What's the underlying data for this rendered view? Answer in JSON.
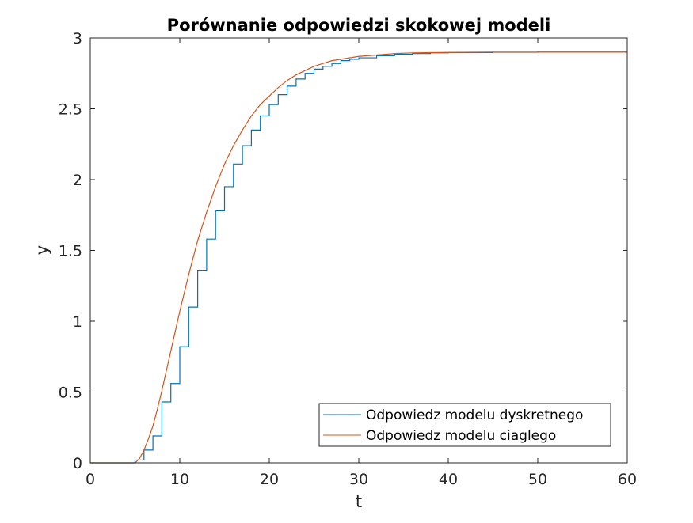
{
  "chart_data": {
    "type": "line",
    "title": "Porównanie odpowiedzi skokowej modeli",
    "xlabel": "t",
    "ylabel": "y",
    "xlim": [
      0,
      60
    ],
    "ylim": [
      0,
      3
    ],
    "xticks": [
      "0",
      "10",
      "20",
      "30",
      "40",
      "50",
      "60"
    ],
    "yticks": [
      "0",
      "0.5",
      "1",
      "1.5",
      "2",
      "2.5",
      "3"
    ],
    "grid": false,
    "legend_position": "bottom-right",
    "series": [
      {
        "name": "Odpowiedz modelu dyskretnego",
        "style": "stairs",
        "color": "#0072BD",
        "x": [
          0,
          1,
          2,
          3,
          4,
          5,
          6,
          7,
          8,
          9,
          10,
          11,
          12,
          13,
          14,
          15,
          16,
          17,
          18,
          19,
          20,
          21,
          22,
          23,
          24,
          25,
          26,
          27,
          28,
          29,
          30,
          32,
          34,
          36,
          38,
          40,
          45,
          50,
          55,
          60
        ],
        "y": [
          0,
          0,
          0,
          0,
          0,
          0.02,
          0.09,
          0.19,
          0.43,
          0.56,
          0.82,
          1.1,
          1.36,
          1.58,
          1.78,
          1.95,
          2.11,
          2.24,
          2.35,
          2.45,
          2.53,
          2.6,
          2.66,
          2.71,
          2.75,
          2.78,
          2.8,
          2.82,
          2.84,
          2.85,
          2.86,
          2.875,
          2.885,
          2.89,
          2.895,
          2.897,
          2.899,
          2.9,
          2.9,
          2.9
        ]
      },
      {
        "name": "Odpowiedz modelu ciaglego",
        "style": "line",
        "color": "#D95319",
        "x": [
          0,
          1,
          2,
          3,
          4,
          5,
          5.5,
          6,
          6.5,
          7,
          7.5,
          8,
          8.5,
          9,
          9.5,
          10,
          11,
          12,
          13,
          14,
          15,
          16,
          17,
          18,
          19,
          20,
          21,
          22,
          23,
          24,
          25,
          26,
          27,
          28,
          30,
          32,
          34,
          36,
          38,
          40,
          45,
          50,
          55,
          60
        ],
        "y": [
          0,
          0,
          0,
          0,
          0,
          0,
          0.03,
          0.09,
          0.17,
          0.26,
          0.38,
          0.51,
          0.65,
          0.79,
          0.93,
          1.07,
          1.33,
          1.57,
          1.77,
          1.95,
          2.11,
          2.24,
          2.35,
          2.45,
          2.53,
          2.59,
          2.65,
          2.7,
          2.74,
          2.77,
          2.8,
          2.82,
          2.84,
          2.85,
          2.87,
          2.88,
          2.89,
          2.895,
          2.897,
          2.898,
          2.9,
          2.9,
          2.9,
          2.9
        ]
      }
    ]
  }
}
